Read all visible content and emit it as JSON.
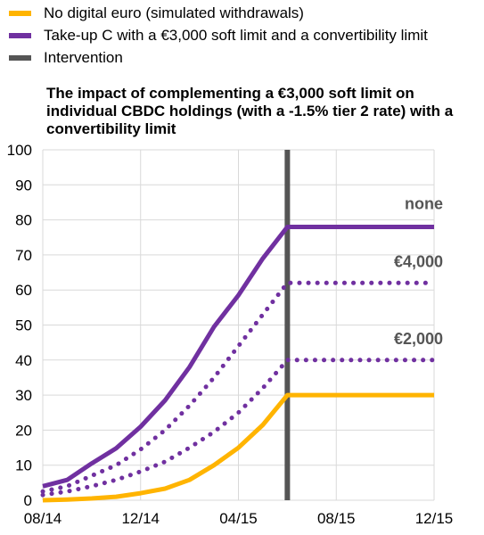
{
  "legend": [
    {
      "label": "No digital euro (simulated withdrawals)",
      "color": "#ffb400"
    },
    {
      "label": "Take-up C with a €3,000 soft limit and a convertibility limit",
      "color": "#7030a0"
    },
    {
      "label": "Intervention",
      "color": "#555555"
    }
  ],
  "chart_data": {
    "type": "line",
    "title": "The impact of complementing a €3,000 soft limit on individual CBDC holdings (with a -1.5% tier 2 rate) with a convertibility limit",
    "xlabel": "",
    "ylabel": "",
    "x_tick_labels": [
      "08/14",
      "12/14",
      "04/15",
      "08/15",
      "12/15"
    ],
    "x_range_months": [
      0,
      16
    ],
    "ylim": [
      0,
      100
    ],
    "y_ticks": [
      0,
      10,
      20,
      30,
      40,
      50,
      60,
      70,
      80,
      90,
      100
    ],
    "intervention_month": 10,
    "grid": true,
    "series": [
      {
        "name": "No digital euro (simulated withdrawals)",
        "color": "#ffb400",
        "style": "solid",
        "x": [
          0,
          1,
          2,
          3,
          4,
          5,
          6,
          7,
          8,
          9,
          10,
          11,
          12,
          13,
          14,
          15,
          16
        ],
        "values": [
          0,
          0.2,
          0.5,
          1,
          2,
          3.3,
          5.8,
          10,
          15,
          21.5,
          30,
          30,
          30,
          30,
          30,
          30,
          30
        ]
      },
      {
        "name": "Take-up C with a €3,000 soft limit and a convertibility limit",
        "color": "#7030a0",
        "style": "solid",
        "end_label": "none",
        "x": [
          0,
          1,
          2,
          3,
          4,
          5,
          6,
          7,
          8,
          9,
          10,
          11,
          12,
          13,
          14,
          15,
          16
        ],
        "values": [
          4,
          5.8,
          10.5,
          14.8,
          21,
          28.5,
          38,
          49.5,
          58.5,
          69,
          78,
          78,
          78,
          78,
          78,
          78,
          78
        ]
      },
      {
        "color": "#7030a0",
        "style": "dotted",
        "end_label": "€4,000",
        "x": [
          0,
          1,
          2,
          3,
          4,
          5,
          6,
          7,
          8,
          9,
          10,
          11,
          12,
          13,
          14,
          15,
          16
        ],
        "values": [
          2.5,
          4,
          7,
          10,
          14.5,
          20,
          27,
          35,
          44,
          53,
          62,
          62,
          62,
          62,
          62,
          62,
          62
        ]
      },
      {
        "color": "#7030a0",
        "style": "dotted",
        "end_label": "€2,000",
        "x": [
          0,
          1,
          2,
          3,
          4,
          5,
          6,
          7,
          8,
          9,
          10,
          11,
          12,
          13,
          14,
          15,
          16
        ],
        "values": [
          1.5,
          2.5,
          4,
          5.8,
          8.2,
          11,
          15,
          19.5,
          25,
          32,
          40,
          40,
          40,
          40,
          40,
          40,
          40
        ]
      }
    ]
  }
}
